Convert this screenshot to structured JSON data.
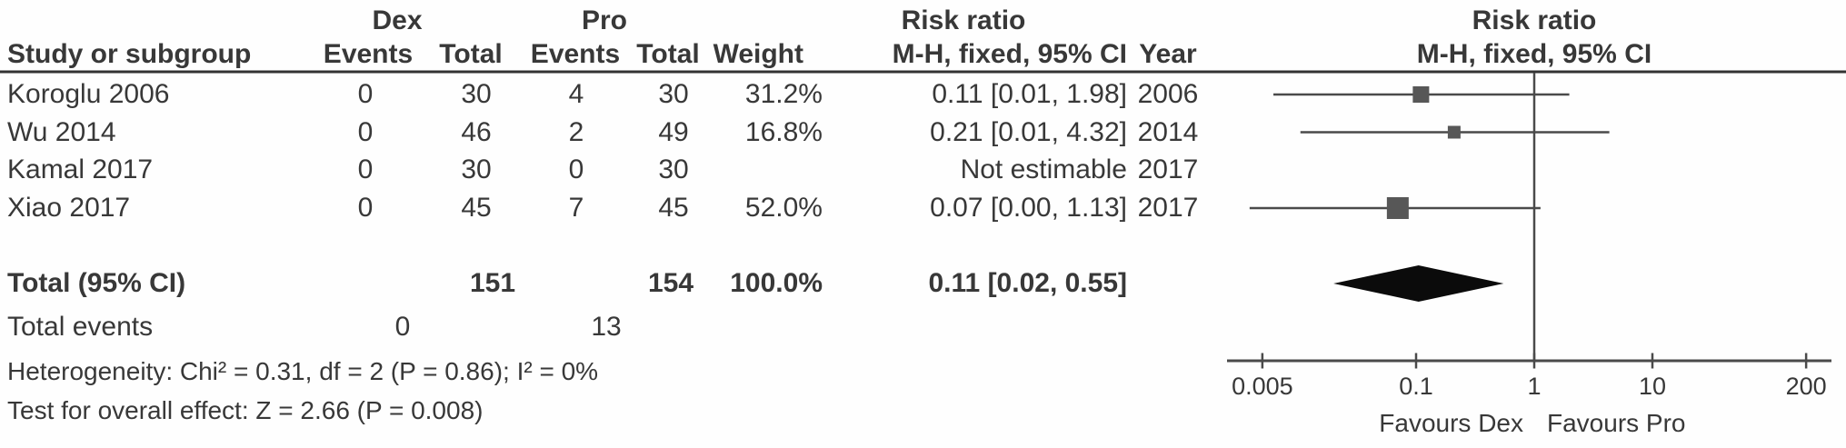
{
  "figure": {
    "type_note": "forest plot (meta-analysis, M-H fixed effect, risk ratio)"
  },
  "table": {
    "header": {
      "group1": "Dex",
      "group2": "Pro",
      "risk_ratio": "Risk ratio",
      "col_study": "Study or subgroup",
      "col_events": "Events",
      "col_total": "Total",
      "col_weight": "Weight",
      "col_mh": "M-H, fixed, 95% CI",
      "col_year": "Year"
    },
    "rows": [
      {
        "study": "Koroglu 2006",
        "dex_events": "0",
        "dex_total": "30",
        "pro_events": "4",
        "pro_total": "30",
        "weight": "31.2%",
        "ci": "0.11 [0.01, 1.98]",
        "year": "2006"
      },
      {
        "study": "Wu 2014",
        "dex_events": "0",
        "dex_total": "46",
        "pro_events": "2",
        "pro_total": "49",
        "weight": "16.8%",
        "ci": "0.21 [0.01, 4.32]",
        "year": "2014"
      },
      {
        "study": "Kamal 2017",
        "dex_events": "0",
        "dex_total": "30",
        "pro_events": "0",
        "pro_total": "30",
        "weight": "",
        "ci": "Not estimable",
        "year": "2017"
      },
      {
        "study": "Xiao 2017",
        "dex_events": "0",
        "dex_total": "45",
        "pro_events": "7",
        "pro_total": "45",
        "weight": "52.0%",
        "ci": "0.07 [0.00, 1.13]",
        "year": "2017"
      }
    ],
    "total": {
      "label": "Total (95% CI)",
      "dex_total": "151",
      "pro_total": "154",
      "weight": "100.0%",
      "ci": "0.11 [0.02, 0.55]"
    },
    "total_events": {
      "label": "Total events",
      "dex": "0",
      "pro": "13"
    },
    "heterogeneity": "Heterogeneity: Chi² = 0.31, df = 2 (P = 0.86); I² = 0%",
    "overall_effect": "Test for overall effect: Z = 2.66 (P = 0.008)"
  },
  "chart_data": {
    "type": "forest",
    "scale": "log10",
    "title": "Risk ratio",
    "subtitle": "M-H, fixed, 95% CI",
    "axis": {
      "min": 0.005,
      "max": 200,
      "null_line": 1,
      "ticks": [
        {
          "v": 0.005,
          "label": "0.005"
        },
        {
          "v": 0.1,
          "label": "0.1"
        },
        {
          "v": 1,
          "label": "1"
        },
        {
          "v": 10,
          "label": "10"
        },
        {
          "v": 200,
          "label": "200"
        }
      ]
    },
    "favours_left": "Favours Dex",
    "favours_right": "Favours Pro",
    "studies": [
      {
        "name": "Koroglu 2006",
        "year": 2006,
        "estimable": true,
        "rr": 0.11,
        "ci_lo": 0.0062,
        "ci_hi": 1.98,
        "weight_pct": 31.2
      },
      {
        "name": "Wu 2014",
        "year": 2014,
        "estimable": true,
        "rr": 0.21,
        "ci_lo": 0.0105,
        "ci_hi": 4.32,
        "weight_pct": 16.8
      },
      {
        "name": "Kamal 2017",
        "year": 2017,
        "estimable": false
      },
      {
        "name": "Xiao 2017",
        "year": 2017,
        "estimable": true,
        "rr": 0.07,
        "ci_lo": 0.0039,
        "ci_hi": 1.13,
        "weight_pct": 52.0
      }
    ],
    "total": {
      "rr": 0.11,
      "ci_lo": 0.02,
      "ci_hi": 0.55
    }
  },
  "colors": {
    "text": "#383838",
    "line": "#4a4a4a",
    "square": "#575757",
    "diamond": "#0b0b0b",
    "rule": "#333333"
  }
}
